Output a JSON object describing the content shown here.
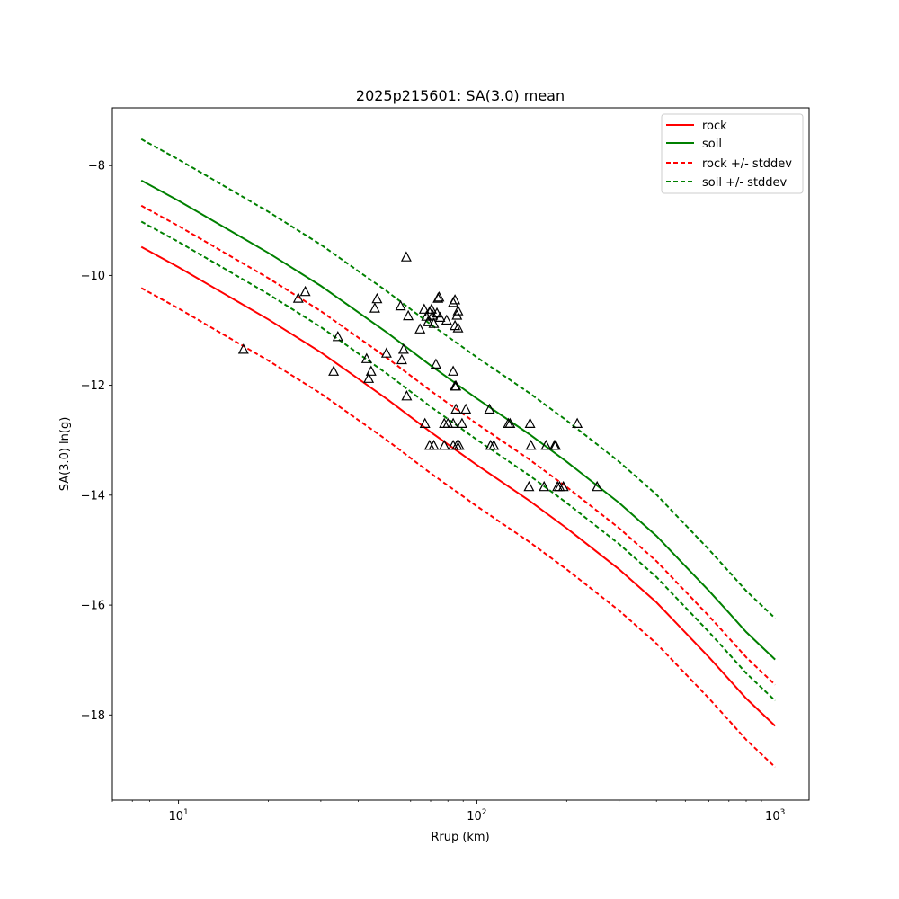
{
  "chart_data": {
    "type": "line",
    "title": "2025p215601: SA(3.0) mean",
    "xlabel": "Rrup (km)",
    "ylabel": "SA(3.0) ln(g)",
    "xscale": "log",
    "xlim": [
      6.0,
      1300
    ],
    "ylim": [
      -19.55,
      -6.95
    ],
    "x_ticks": [
      {
        "value": 10,
        "exp": "1"
      },
      {
        "value": 100,
        "exp": "2"
      },
      {
        "value": 1000,
        "exp": "3"
      }
    ],
    "y_ticks": [
      -18,
      -16,
      -14,
      -12,
      -10,
      -8
    ],
    "grid": false,
    "legend_position": "top-right",
    "x": [
      7.5,
      10,
      20,
      30,
      50,
      70,
      100,
      150,
      200,
      300,
      400,
      500,
      600,
      700,
      800,
      1000
    ],
    "series": [
      {
        "name": "rock",
        "color": "#ff0000",
        "style": "solid",
        "values": [
          -9.48,
          -9.85,
          -10.8,
          -11.4,
          -12.25,
          -12.85,
          -13.45,
          -14.1,
          -14.6,
          -15.35,
          -15.95,
          -16.5,
          -16.95,
          -17.35,
          -17.7,
          -18.2
        ]
      },
      {
        "name": "soil",
        "color": "#008000",
        "style": "solid",
        "values": [
          -8.27,
          -8.64,
          -9.59,
          -10.19,
          -11.04,
          -11.64,
          -12.24,
          -12.89,
          -13.39,
          -14.14,
          -14.74,
          -15.29,
          -15.74,
          -16.14,
          -16.49,
          -16.99
        ]
      },
      {
        "name": "rock +/- stddev",
        "color": "#ff0000",
        "style": "dashed",
        "values": [
          -8.73,
          -9.1,
          -10.05,
          -10.65,
          -11.5,
          -12.1,
          -12.7,
          -13.35,
          -13.85,
          -14.6,
          -15.2,
          -15.75,
          -16.2,
          -16.6,
          -16.95,
          -17.45
        ]
      },
      {
        "name": "",
        "color": "#ff0000",
        "style": "dashed",
        "values": [
          -10.23,
          -10.6,
          -11.55,
          -12.15,
          -13.0,
          -13.6,
          -14.2,
          -14.85,
          -15.35,
          -16.1,
          -16.7,
          -17.25,
          -17.7,
          -18.1,
          -18.45,
          -18.95
        ]
      },
      {
        "name": "soil +/- stddev",
        "color": "#008000",
        "style": "dashed",
        "values": [
          -7.52,
          -7.89,
          -8.84,
          -9.44,
          -10.29,
          -10.89,
          -11.49,
          -12.14,
          -12.64,
          -13.39,
          -13.99,
          -14.54,
          -14.99,
          -15.39,
          -15.74,
          -16.24
        ]
      },
      {
        "name": "",
        "color": "#008000",
        "style": "dashed",
        "values": [
          -9.02,
          -9.39,
          -10.34,
          -10.94,
          -11.79,
          -12.39,
          -12.99,
          -13.64,
          -14.14,
          -14.89,
          -15.49,
          -16.04,
          -16.49,
          -16.89,
          -17.24,
          -17.74
        ]
      }
    ],
    "observations": {
      "marker": "triangle",
      "points": [
        [
          16.5,
          -11.35
        ],
        [
          25.2,
          -10.42
        ],
        [
          26.6,
          -10.3
        ],
        [
          33.1,
          -11.75
        ],
        [
          34.2,
          -11.12
        ],
        [
          42.7,
          -11.52
        ],
        [
          43.4,
          -11.88
        ],
        [
          44.2,
          -11.75
        ],
        [
          45.5,
          -10.6
        ],
        [
          46.3,
          -10.43
        ],
        [
          49.8,
          -11.42
        ],
        [
          55.5,
          -10.56
        ],
        [
          56.0,
          -11.54
        ],
        [
          56.8,
          -11.35
        ],
        [
          58.0,
          -9.67
        ],
        [
          58.2,
          -12.2
        ],
        [
          58.9,
          -10.74
        ],
        [
          64.5,
          -10.98
        ],
        [
          66.6,
          -10.62
        ],
        [
          67.0,
          -12.7
        ],
        [
          67.8,
          -10.75
        ],
        [
          68.6,
          -10.85
        ],
        [
          69.4,
          -10.67
        ],
        [
          69.4,
          -13.1
        ],
        [
          70.5,
          -10.62
        ],
        [
          71.1,
          -10.73
        ],
        [
          71.7,
          -10.88
        ],
        [
          71.7,
          -13.1
        ],
        [
          72.9,
          -11.62
        ],
        [
          73.5,
          -10.69
        ],
        [
          74.1,
          -10.42
        ],
        [
          74.7,
          -10.4
        ],
        [
          75.3,
          -10.77
        ],
        [
          77.8,
          -12.7
        ],
        [
          77.8,
          -13.1
        ],
        [
          79.2,
          -10.82
        ],
        [
          80.0,
          -12.7
        ],
        [
          83.3,
          -10.5
        ],
        [
          83.3,
          -11.75
        ],
        [
          83.3,
          -12.7
        ],
        [
          83.3,
          -13.1
        ],
        [
          84.5,
          -10.45
        ],
        [
          84.5,
          -10.92
        ],
        [
          84.5,
          -12.02
        ],
        [
          85.1,
          -12.02
        ],
        [
          85.1,
          -12.44
        ],
        [
          85.8,
          -10.73
        ],
        [
          85.8,
          -13.1
        ],
        [
          86.5,
          -10.65
        ],
        [
          86.5,
          -10.96
        ],
        [
          87.2,
          -13.1
        ],
        [
          89.2,
          -12.7
        ],
        [
          91.9,
          -12.44
        ],
        [
          110.3,
          -12.44
        ],
        [
          111.2,
          -13.1
        ],
        [
          114.0,
          -13.1
        ],
        [
          127.5,
          -12.7
        ],
        [
          129.2,
          -12.7
        ],
        [
          149.6,
          -13.85
        ],
        [
          150.8,
          -12.7
        ],
        [
          151.9,
          -13.1
        ],
        [
          168.0,
          -13.85
        ],
        [
          170.6,
          -13.1
        ],
        [
          182.2,
          -13.1
        ],
        [
          183.6,
          -13.1
        ],
        [
          186.4,
          -13.85
        ],
        [
          189.3,
          -13.85
        ],
        [
          195.1,
          -13.85
        ],
        [
          217.1,
          -12.7
        ],
        [
          253.1,
          -13.85
        ]
      ]
    }
  }
}
